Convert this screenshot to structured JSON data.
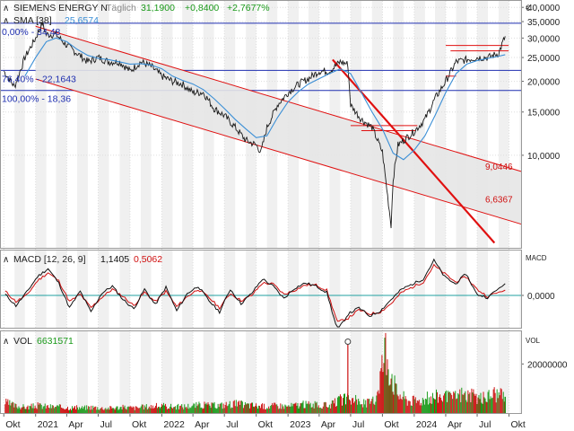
{
  "colors": {
    "price": "#1a1a1a",
    "sma": "#3b8fd6",
    "fib": "#1f2fb0",
    "fib_text": "#1f2fb0",
    "channel": "#e01010",
    "channel_fill": "#e6e6e6",
    "channel_label": "#d01010",
    "macd": "#101010",
    "signal": "#d01010",
    "zero_line": "#20a0a0",
    "vol_down": "#cc1111",
    "vol_up": "#1a9a1a",
    "grid": "#dddddd",
    "band": "#f0f0f0",
    "price_green": "#1a9a1a",
    "price_blue": "#1f3fc0"
  },
  "header": {
    "symbol": "SIEMENS ENERGY N",
    "period": "Täglich",
    "last": "31,1900",
    "change": "+0,8400",
    "change_pct": "+2,7677%",
    "sma_label": "SMA [38]",
    "sma_value": "25,6574",
    "currency": "€"
  },
  "macd_header": {
    "label": "MACD [12, 26, 9]",
    "macd": "1,1405",
    "signal": "0,5062"
  },
  "vol_header": {
    "label": "VOL",
    "value": "6631571"
  },
  "axis_titles": {
    "macd": "MACD",
    "vol": "VOL"
  },
  "chart_data": [
    {
      "type": "line",
      "title": "SIEMENS ENERGY N",
      "scale": "log",
      "x_ticks": [
        "Okt",
        "2021",
        "Apr",
        "Jul",
        "Okt",
        "2022",
        "Apr",
        "Jul",
        "Okt",
        "2023",
        "Apr",
        "Jul",
        "Okt",
        "2024",
        "Apr",
        "Jul",
        "Okt"
      ],
      "y_ticks": [
        "40,0000",
        "35,0000",
        "30,0000",
        "25,0000",
        "20,0000",
        "15,0000",
        "10,0000"
      ],
      "series": [
        {
          "name": "SIEMENS ENERGY N",
          "x": [
            "2020-10-01",
            "2020-11-01",
            "2020-12-01",
            "2021-01-01",
            "2021-01-20",
            "2021-02-01",
            "2021-03-01",
            "2021-04-01",
            "2021-05-01",
            "2021-06-01",
            "2021-07-01",
            "2021-08-01",
            "2021-09-01",
            "2021-10-01",
            "2021-11-01",
            "2021-12-01",
            "2022-01-01",
            "2022-02-01",
            "2022-03-01",
            "2022-04-01",
            "2022-05-01",
            "2022-06-01",
            "2022-07-01",
            "2022-08-01",
            "2022-09-01",
            "2022-10-01",
            "2022-10-15",
            "2022-11-01",
            "2022-12-01",
            "2023-01-01",
            "2023-02-01",
            "2023-03-01",
            "2023-04-01",
            "2023-05-01",
            "2023-06-01",
            "2023-06-23",
            "2023-07-01",
            "2023-08-01",
            "2023-09-01",
            "2023-10-01",
            "2023-10-26",
            "2023-11-01",
            "2023-11-15",
            "2023-12-01",
            "2024-01-01",
            "2024-02-01",
            "2024-03-01",
            "2024-04-01",
            "2024-05-01",
            "2024-06-01",
            "2024-07-01",
            "2024-08-01",
            "2024-09-01",
            "2024-09-20"
          ],
          "y": [
            22,
            19,
            25,
            30,
            34.5,
            31,
            31,
            28,
            26,
            24,
            25,
            24,
            24,
            22,
            24,
            23,
            21,
            20,
            19.5,
            18,
            18,
            15.5,
            14.5,
            13,
            11.5,
            11,
            10.3,
            13,
            16,
            18,
            19.5,
            20.5,
            22,
            22,
            24,
            23.5,
            16,
            14,
            13,
            10.3,
            5.2,
            8,
            11,
            11.5,
            12.5,
            14,
            17,
            20,
            24,
            24.5,
            25,
            25,
            26,
            30.5
          ]
        },
        {
          "name": "SMA [38]",
          "x": [
            "2020-12-01",
            "2021-01-01",
            "2021-02-01",
            "2021-03-01",
            "2021-04-01",
            "2021-05-01",
            "2021-06-01",
            "2021-07-01",
            "2021-08-01",
            "2021-09-01",
            "2021-10-01",
            "2021-11-01",
            "2021-12-01",
            "2022-01-01",
            "2022-02-01",
            "2022-03-01",
            "2022-04-01",
            "2022-05-01",
            "2022-06-01",
            "2022-07-01",
            "2022-08-01",
            "2022-09-01",
            "2022-10-01",
            "2022-11-01",
            "2022-12-01",
            "2023-01-01",
            "2023-02-01",
            "2023-03-01",
            "2023-04-01",
            "2023-05-01",
            "2023-06-01",
            "2023-07-01",
            "2023-08-01",
            "2023-09-01",
            "2023-10-01",
            "2023-11-01",
            "2023-12-01",
            "2024-01-01",
            "2024-02-01",
            "2024-03-01",
            "2024-04-01",
            "2024-05-01",
            "2024-06-01",
            "2024-07-01",
            "2024-08-01",
            "2024-09-01",
            "2024-09-20"
          ],
          "y": [
            21,
            25,
            29,
            30,
            29,
            27,
            25.5,
            24.8,
            24.5,
            24,
            23.5,
            23.6,
            23.3,
            22.5,
            21,
            20.2,
            19.5,
            18.5,
            17,
            15.5,
            14,
            12.8,
            11.8,
            12,
            14.2,
            16.5,
            18.2,
            19.5,
            20.5,
            21.5,
            22.5,
            21.5,
            18,
            15,
            12.8,
            10.2,
            9.6,
            10.5,
            12,
            14.5,
            18,
            21.5,
            23.5,
            24.3,
            24.8,
            25.3,
            25.66
          ]
        }
      ],
      "fib_levels": [
        {
          "label": "0,00% - 34,48",
          "value": 34.48
        },
        {
          "label": "76,40% - 22,1643",
          "value": 22.1643
        },
        {
          "label": "100,00% - 18,36",
          "value": 18.36
        }
      ],
      "channel_labels": [
        {
          "label": "9,0446",
          "value": 9.0446
        },
        {
          "label": "6,6367",
          "value": 6.6367
        }
      ]
    },
    {
      "type": "line",
      "title": "MACD [12, 26, 9]",
      "x_ticks": [
        "Okt",
        "2021",
        "Apr",
        "Jul",
        "Okt",
        "2022",
        "Apr",
        "Jul",
        "Okt",
        "2023",
        "Apr",
        "Jul",
        "Okt",
        "2024",
        "Apr",
        "Jul",
        "Okt"
      ],
      "y_ticks": [
        "0,0000"
      ],
      "series": [
        {
          "name": "MACD",
          "values": [
            0.1,
            -1,
            0.3,
            1.8,
            2.6,
            1.2,
            -1.2,
            0.4,
            -1.6,
            0.2,
            0.9,
            -0.4,
            -1.3,
            0.6,
            -0.9,
            0.8,
            -1.5,
            0.2,
            0.9,
            -0.5,
            -1.6,
            0.6,
            -0.8,
            0.2,
            1.6,
            0.9,
            -0.3,
            0.7,
            1.2,
            0.9,
            0.3,
            -3.4,
            -1.8,
            -1.2,
            -2.0,
            -1.5,
            -0.4,
            0.6,
            1.1,
            1.6,
            3.4,
            1.8,
            1.1,
            2.1,
            0.1,
            -0.2,
            1.14
          ]
        },
        {
          "name": "Signal",
          "values": [
            0.4,
            -0.6,
            0.0,
            1.4,
            2.2,
            1.4,
            -0.6,
            0.1,
            -1.2,
            -0.2,
            0.6,
            -0.1,
            -1.0,
            0.3,
            -0.6,
            0.4,
            -1.1,
            -0.1,
            0.6,
            -0.2,
            -1.2,
            0.2,
            -0.5,
            0.0,
            1.2,
            1.1,
            0.1,
            0.5,
            1.0,
            1.0,
            0.5,
            -2.6,
            -2.2,
            -1.4,
            -1.8,
            -1.6,
            -0.8,
            0.3,
            0.8,
            1.3,
            2.9,
            2.1,
            1.3,
            1.8,
            0.6,
            -0.1,
            0.51
          ]
        }
      ]
    },
    {
      "type": "bar",
      "title": "VOL",
      "x_ticks": [
        "Okt",
        "2021",
        "Apr",
        "Jul",
        "Okt",
        "2022",
        "Apr",
        "Jul",
        "Okt",
        "2023",
        "Apr",
        "Jul",
        "Okt",
        "2024",
        "Apr",
        "Jul",
        "Okt"
      ],
      "y_ticks": [
        "20000000"
      ],
      "series": [
        {
          "name": "VOL",
          "values": [
            4.5,
            3,
            2.5,
            3.2,
            2.8,
            2.6,
            2.4,
            2.2,
            2.6,
            2.1,
            2.3,
            2.5,
            2.2,
            2.8,
            3,
            2.9,
            2.7,
            3.1,
            3.5,
            3.2,
            3.4,
            4.1,
            3.6,
            3.2,
            2.8,
            3.3,
            2.9,
            3.6,
            3.8,
            3.1,
            3.5,
            6,
            5.6,
            4.2,
            4.9,
            28,
            9,
            5.5,
            5.2,
            6.5,
            7.5,
            6.2,
            8.2,
            7.1,
            6.3,
            8.6,
            6.63
          ]
        }
      ],
      "unit": "millions"
    }
  ]
}
